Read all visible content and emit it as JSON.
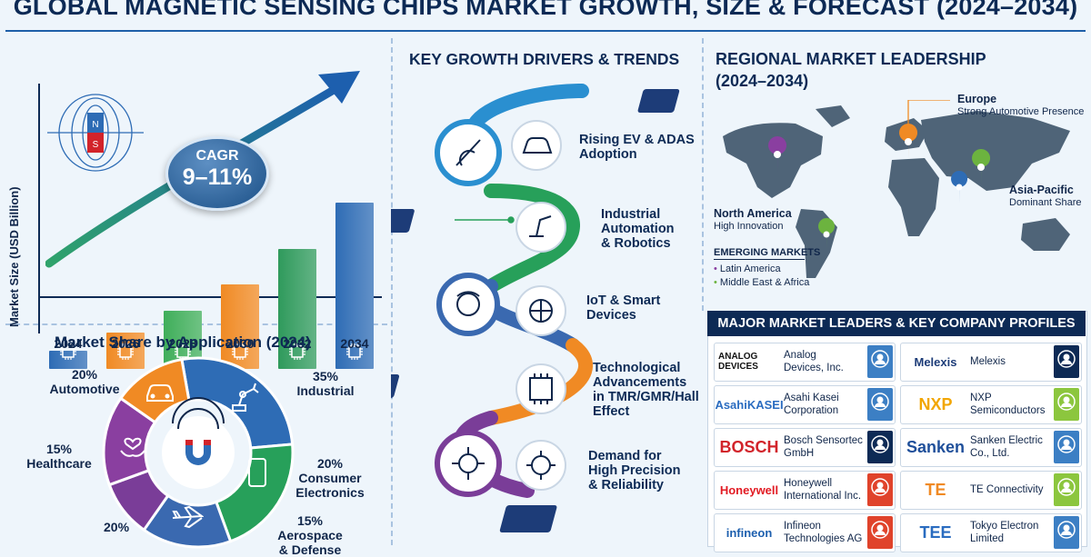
{
  "title": "GLOBAL MAGNETIC SENSING CHIPS MARKET GROWTH, SIZE & FORECAST (2024–2034)",
  "growth": {
    "ylabel": "Market Size (USD Billion)",
    "cagr_label": "CAGR",
    "cagr_value": "9–11%",
    "bars": [
      {
        "year": "2024",
        "color": "#2e6cb5"
      },
      {
        "year": "2026",
        "color": "#f08a24"
      },
      {
        "year": "2028",
        "color": "#3fae5a"
      },
      {
        "year": "2030",
        "color": "#f08a24"
      },
      {
        "year": "2032",
        "color": "#2f9a5c"
      },
      {
        "year": "2034",
        "color": "#2e6cb5"
      }
    ]
  },
  "share": {
    "title": "Market Share by Application (2024)",
    "segments": [
      {
        "pct": "35%",
        "name": "Industrial",
        "color": "#2e6cb5"
      },
      {
        "pct": "20%",
        "name": "Consumer Electronics",
        "color": "#27a05a"
      },
      {
        "pct": "15%",
        "name": "Aerospace & Defense",
        "color": "#3a69b0"
      },
      {
        "pct": "20%",
        "name": "",
        "color": "#7a3d98"
      },
      {
        "pct": "15%",
        "name": "Healthcare",
        "color": "#8a3fa0"
      },
      {
        "pct": "20%",
        "name": "Automotive",
        "color": "#f08a24"
      }
    ],
    "labels": {
      "industrial_pct": "35%",
      "industrial": "Industrial",
      "consumer_pct": "20%",
      "consumer_l1": "Consumer",
      "consumer_l2": "Electronics",
      "aero_pct": "15%",
      "aero_l1": "Aerospace",
      "aero_l2": "& Defense",
      "bottom_pct": "20%",
      "health_pct": "15%",
      "health": "Healthcare",
      "auto_pct": "20%",
      "auto": "Automotive"
    }
  },
  "drivers": {
    "title": "KEY GROWTH DRIVERS & TRENDS",
    "items": [
      {
        "l1": "Rising EV & ADAS",
        "l2": "Adoption",
        "l3": "",
        "l4": ""
      },
      {
        "l1": "Industrial",
        "l2": "Automation",
        "l3": "& Robotics",
        "l4": ""
      },
      {
        "l1": "IoT & Smart",
        "l2": "Devices",
        "l3": "",
        "l4": ""
      },
      {
        "l1": "Technological",
        "l2": "Advancements",
        "l3": "in TMR/GMR/Hall",
        "l4": "Effect"
      },
      {
        "l1": "Demand for",
        "l2": "High Precision",
        "l3": "& Reliability",
        "l4": ""
      }
    ]
  },
  "regional": {
    "title_l1": "REGIONAL MARKET LEADERSHIP",
    "title_l2": "(2024–2034)",
    "europe": "Europe",
    "europe_sub": "Strong Automotive Presence",
    "na": "North America",
    "na_sub": "High Innovation",
    "apac": "Asia-Pacific",
    "apac_sub": "Dominant Share",
    "emerging_title": "EMERGING MARKETS",
    "emerging": [
      "Latin America",
      "Middle East & Africa"
    ]
  },
  "companies": {
    "title": "MAJOR MARKET LEADERS & KEY COMPANY PROFILES",
    "items": [
      {
        "logo": "ANALOG DEVICES",
        "n1": "Analog",
        "n2": "Devices, Inc.",
        "logo_color": "#111111",
        "av": "#3c7fc4"
      },
      {
        "logo": "Melexis",
        "n1": "Melexis",
        "n2": "",
        "logo_color": "#1d3c78",
        "av": "#0d2a55"
      },
      {
        "logo": "AsahiKASEI",
        "n1": "Asahi Kasei",
        "n2": "Corporation",
        "logo_color": "#2a6cc0",
        "av": "#3c7fc4"
      },
      {
        "logo": "NXP",
        "n1": "NXP",
        "n2": "Semiconductors",
        "logo_color": "#f2a600",
        "av": "#8cc63e"
      },
      {
        "logo": "BOSCH",
        "n1": "Bosch Sensortec",
        "n2": "GmbH",
        "logo_color": "#d2232a",
        "av": "#0d2a55"
      },
      {
        "logo": "Sanken",
        "n1": "Sanken Electric",
        "n2": "Co., Ltd.",
        "logo_color": "#1f4f9a",
        "av": "#3c7fc4"
      },
      {
        "logo": "Honeywell",
        "n1": "Honeywell",
        "n2": "International Inc.",
        "logo_color": "#e21b23",
        "av": "#e0432b"
      },
      {
        "logo": "TE",
        "n1": "TE Connectivity",
        "n2": "",
        "logo_color": "#f08a24",
        "av": "#8cc63e"
      },
      {
        "logo": "infineon",
        "n1": "Infineon",
        "n2": "Technologies AG",
        "logo_color": "#1d5fae",
        "av": "#e0432b"
      },
      {
        "logo": "TEE",
        "n1": "Tokyo Electron",
        "n2": "Limited",
        "logo_color": "#2a6cc0",
        "av": "#3c7fc4"
      }
    ]
  }
}
